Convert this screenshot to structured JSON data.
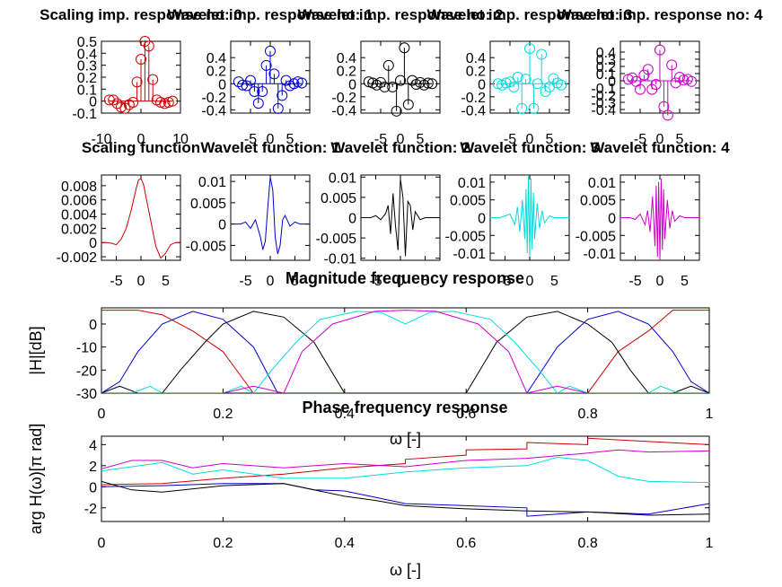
{
  "colors": {
    "scaling": "#cc0000",
    "wavelet1": "#0000cc",
    "wavelet2": "#000000",
    "wavelet3": "#00dddd",
    "wavelet4": "#cc00cc"
  },
  "chart_data": [
    {
      "type": "stem",
      "title": "Scaling imp. response no: 0",
      "ylim": [
        -0.1,
        0.5
      ],
      "yticks": [
        "-0.1",
        "0",
        "0.1",
        "0.2",
        "0.3",
        "0.4",
        "0.5"
      ],
      "xticks": [
        "-10",
        "0",
        "10"
      ],
      "x": [
        -8,
        -7,
        -6,
        -5,
        -4,
        -3,
        -2,
        -1,
        0,
        1,
        2,
        3,
        4,
        5,
        6,
        7,
        8
      ],
      "values": [
        0.01,
        0.01,
        -0.02,
        -0.05,
        -0.06,
        -0.03,
        -0.01,
        0.16,
        0.35,
        0.5,
        0.46,
        0.18,
        0.01,
        -0.01,
        -0.02,
        -0.01,
        0.0
      ]
    },
    {
      "type": "stem",
      "title": "Wavelet imp. response no: 1",
      "ylim": [
        -0.45,
        0.65
      ],
      "yticks": [
        "-0.4",
        "-0.2",
        "0",
        "0.2",
        "0.4"
      ],
      "xticks": [
        "-5",
        "0",
        "5"
      ],
      "x": [
        -8,
        -7,
        -6,
        -5,
        -4,
        -3,
        -2,
        -1,
        0,
        1,
        2,
        3,
        4,
        5,
        6,
        7,
        8
      ],
      "values": [
        0.03,
        -0.02,
        -0.03,
        0.05,
        -0.12,
        -0.3,
        -0.12,
        0.28,
        0.5,
        0.15,
        -0.38,
        -0.18,
        0.05,
        -0.03,
        0.0,
        0.03,
        0.01
      ]
    },
    {
      "type": "stem",
      "title": "Wavelet imp. response no: 2",
      "ylim": [
        -0.45,
        0.65
      ],
      "yticks": [
        "-0.4",
        "-0.2",
        "0",
        "0.2",
        "0.4"
      ],
      "xticks": [
        "-5",
        "0",
        "5"
      ],
      "x": [
        -8,
        -7,
        -6,
        -5,
        -4,
        -3,
        -2,
        -1,
        0,
        1,
        2,
        3,
        4,
        5,
        6,
        7,
        8
      ],
      "values": [
        0.03,
        0.01,
        -0.02,
        0.02,
        -0.05,
        0.28,
        -0.05,
        -0.42,
        0.05,
        0.55,
        -0.32,
        0.05,
        -0.01,
        0.02,
        -0.02,
        0.01,
        0.0
      ]
    },
    {
      "type": "stem",
      "title": "Wavelet imp. response no: 3",
      "ylim": [
        -0.45,
        0.65
      ],
      "yticks": [
        "-0.4",
        "-0.2",
        "0",
        "0.2",
        "0.4"
      ],
      "xticks": [
        "-5",
        "0",
        "5"
      ],
      "x": [
        -8,
        -7,
        -6,
        -5,
        -4,
        -3,
        -2,
        -1,
        0,
        1,
        2,
        3,
        4,
        5,
        6,
        7,
        8
      ],
      "values": [
        0.0,
        -0.02,
        0.01,
        0.03,
        -0.05,
        0.1,
        -0.38,
        0.07,
        0.54,
        -0.38,
        0.0,
        0.45,
        -0.12,
        -0.05,
        0.08,
        0.01,
        -0.02
      ]
    },
    {
      "type": "stem",
      "title": "Wavelet imp. response no: 4",
      "ylim": [
        -0.45,
        0.55
      ],
      "yticks": [
        "-0.4",
        "-0.3",
        "-0.2",
        "-0.1",
        "0",
        "0.1",
        "0.2",
        "0.3",
        "0.4"
      ],
      "xticks": [
        "-5",
        "0",
        "5"
      ],
      "x": [
        -8,
        -7,
        -6,
        -5,
        -4,
        -3,
        -2,
        -1,
        0,
        1,
        2,
        3,
        4,
        5,
        6,
        7,
        8
      ],
      "values": [
        0.02,
        0.04,
        -0.01,
        -0.12,
        0.08,
        0.16,
        -0.12,
        -0.05,
        0.43,
        -0.36,
        -0.48,
        0.22,
        -0.03,
        0.05,
        0.01,
        0.02,
        -0.01
      ]
    },
    {
      "type": "line",
      "title": "Scaling function",
      "ylim": [
        -0.0025,
        0.0095
      ],
      "xlim": [
        -8,
        8
      ],
      "yticks": [
        "-0.002",
        "0",
        "0.002",
        "0.004",
        "0.006",
        "0.008"
      ],
      "xticks": [
        "-5",
        "0",
        "5"
      ],
      "x": [
        -8,
        -7,
        -6,
        -5,
        -4,
        -3,
        -2,
        -1,
        -0.5,
        0,
        0.5,
        1,
        2,
        3,
        4,
        5,
        6,
        7,
        8
      ],
      "values": [
        0.0,
        0.0,
        -0.0001,
        -0.0003,
        0.0005,
        0.002,
        0.0045,
        0.0075,
        0.0088,
        0.009,
        0.0082,
        0.0065,
        0.003,
        -0.0005,
        -0.0022,
        -0.0015,
        -0.0003,
        0.0,
        0.0
      ]
    },
    {
      "type": "line",
      "title": "Wavelet function: 1",
      "ylim": [
        -0.0085,
        0.0115
      ],
      "xlim": [
        -8,
        8
      ],
      "yticks": [
        "-0.005",
        "0",
        "0.005",
        "0.01"
      ],
      "xticks": [
        "-5",
        "0",
        "5"
      ],
      "x": [
        -8,
        -6,
        -5,
        -4,
        -3,
        -2,
        -1.5,
        -1,
        -0.5,
        0,
        0.5,
        1,
        1.5,
        2,
        2.5,
        3,
        4,
        5,
        6,
        8
      ],
      "values": [
        0.0,
        0.0,
        0.0005,
        -0.001,
        0.001,
        -0.003,
        -0.006,
        -0.004,
        0.004,
        0.011,
        0.008,
        -0.003,
        -0.007,
        -0.005,
        0.001,
        0.002,
        -0.0005,
        0.0005,
        0.0,
        0.0
      ]
    },
    {
      "type": "line",
      "title": "Wavelet function: 2",
      "ylim": [
        -0.0105,
        0.0105
      ],
      "xlim": [
        -8,
        8
      ],
      "yticks": [
        "-0.01",
        "-0.005",
        "0",
        "0.005",
        "0.01"
      ],
      "xticks": [
        "-5",
        "0",
        "5"
      ],
      "x": [
        -8,
        -6,
        -5,
        -4,
        -3,
        -2.5,
        -2,
        -1.5,
        -1,
        -0.5,
        0,
        0.5,
        1,
        1.5,
        2,
        2.5,
        3,
        4,
        5,
        6,
        8
      ],
      "values": [
        0.0,
        0.0,
        0.0005,
        -0.0005,
        0.001,
        0.003,
        -0.004,
        0.006,
        -0.002,
        -0.008,
        0.0095,
        0.005,
        -0.0095,
        0.004,
        0.003,
        -0.003,
        0.0015,
        -0.0005,
        0.0,
        0.0,
        0.0
      ]
    },
    {
      "type": "line",
      "title": "Wavelet function: 3",
      "ylim": [
        -0.012,
        0.012
      ],
      "xlim": [
        -8,
        8
      ],
      "yticks": [
        "-0.01",
        "-0.005",
        "0",
        "0.005",
        "0.01"
      ],
      "xticks": [
        "-5",
        "0",
        "5"
      ],
      "x": [
        -8,
        -6,
        -5,
        -4,
        -3,
        -2.5,
        -2,
        -1.5,
        -1,
        -0.75,
        -0.5,
        -0.25,
        0,
        0.25,
        0.5,
        0.75,
        1,
        1.5,
        2,
        2.5,
        3,
        4,
        5,
        6,
        8
      ],
      "values": [
        0.0,
        0.0,
        0.0005,
        0.001,
        -0.002,
        0.003,
        -0.004,
        0.005,
        -0.006,
        0.008,
        -0.01,
        0.012,
        -0.011,
        0.011,
        -0.009,
        0.007,
        -0.006,
        0.004,
        -0.003,
        0.002,
        -0.0015,
        0.0005,
        0.0,
        0.0,
        0.0
      ]
    },
    {
      "type": "line",
      "title": "Wavelet function: 4",
      "ylim": [
        -0.012,
        0.012
      ],
      "xlim": [
        -8,
        8
      ],
      "yticks": [
        "-0.01",
        "-0.005",
        "0",
        "0.005",
        "0.01"
      ],
      "xticks": [
        "-5",
        "0",
        "5"
      ],
      "x": [
        -8,
        -6,
        -5,
        -4,
        -3,
        -2.5,
        -2,
        -1.5,
        -1,
        -0.75,
        -0.5,
        -0.25,
        0,
        0.25,
        0.5,
        0.75,
        1,
        1.5,
        2,
        2.5,
        3,
        4,
        5,
        6,
        8
      ],
      "values": [
        0.0,
        0.0,
        -0.0005,
        0.001,
        -0.002,
        0.002,
        -0.004,
        0.006,
        -0.008,
        0.009,
        -0.011,
        0.01,
        -0.012,
        0.011,
        -0.009,
        0.008,
        -0.006,
        0.005,
        -0.003,
        0.002,
        -0.001,
        0.0005,
        0.0,
        0.0,
        0.0
      ]
    },
    {
      "type": "line",
      "title": "Magnitude frequency response",
      "xlabel": "ω [-]",
      "ylabel": "|H|[dB]",
      "xlim": [
        0,
        1
      ],
      "ylim": [
        -30,
        7
      ],
      "xticks": [
        "0",
        "0.2",
        "0.4",
        "0.6",
        "0.8",
        "1"
      ],
      "yticks": [
        "-30",
        "-20",
        "-10",
        "0"
      ],
      "series": [
        {
          "name": "",
          "color": "scaling",
          "x": [
            0,
            0.06,
            0.1,
            0.15,
            0.2,
            0.25,
            0.8,
            0.85,
            0.9,
            0.94,
            1
          ],
          "values": [
            6,
            6,
            4,
            -3,
            -12,
            -30,
            -30,
            -12,
            -3,
            6,
            6
          ]
        },
        {
          "name": "",
          "color": "wavelet1",
          "x": [
            0,
            0.03,
            0.06,
            0.1,
            0.15,
            0.2,
            0.25,
            0.29,
            0.7,
            0.75,
            0.8,
            0.85,
            0.9,
            0.94,
            0.97,
            1
          ],
          "values": [
            -30,
            -25,
            -12,
            0,
            5.5,
            2,
            -10,
            -30,
            -30,
            -10,
            2,
            5.5,
            0,
            -12,
            -25,
            -30
          ]
        },
        {
          "name": "",
          "color": "wavelet2",
          "x": [
            0,
            0.03,
            0.06,
            0.1,
            0.13,
            0.17,
            0.2,
            0.25,
            0.3,
            0.35,
            0.4,
            0.45,
            0.55,
            0.6,
            0.65,
            0.7,
            0.75,
            0.8,
            0.84,
            0.87,
            0.9,
            0.94,
            0.97,
            1
          ],
          "values": [
            -30,
            -27,
            -30,
            -30,
            -20,
            -8,
            0,
            5.5,
            3,
            -8,
            -30,
            -30,
            -30,
            -30,
            -8,
            3,
            5.5,
            0,
            -8,
            -20,
            -30,
            -30,
            -27,
            -30
          ]
        },
        {
          "name": "",
          "color": "wavelet3",
          "x": [
            0,
            0.05,
            0.08,
            0.1,
            0.2,
            0.23,
            0.25,
            0.28,
            0.32,
            0.36,
            0.42,
            0.46,
            0.5,
            0.54,
            0.58,
            0.64,
            0.68,
            0.72,
            0.75,
            0.77,
            0.8,
            0.9,
            0.92,
            0.95,
            1
          ],
          "values": [
            -30,
            -30,
            -27,
            -30,
            -30,
            -27,
            -30,
            -20,
            -8,
            2,
            5.5,
            5,
            0,
            5,
            5.5,
            2,
            -8,
            -20,
            -30,
            -27,
            -30,
            -30,
            -27,
            -30,
            -30
          ]
        },
        {
          "name": "",
          "color": "wavelet4",
          "x": [
            0,
            0.2,
            0.25,
            0.3,
            0.33,
            0.38,
            0.45,
            0.5,
            0.55,
            0.62,
            0.67,
            0.7,
            0.75,
            0.8,
            1
          ],
          "values": [
            -30,
            -30,
            -27,
            -30,
            -12,
            0,
            5.5,
            6,
            5.5,
            0,
            -12,
            -30,
            -27,
            -30,
            -30
          ]
        }
      ]
    },
    {
      "type": "line",
      "title": "Phase frequency response",
      "xlabel": "ω [-]",
      "ylabel": "arg H(ω)[π rad]",
      "xlim": [
        0,
        1
      ],
      "ylim": [
        -3.3,
        4.8
      ],
      "xticks": [
        "0",
        "0.2",
        "0.4",
        "0.6",
        "0.8",
        "1"
      ],
      "yticks": [
        "-2",
        "0",
        "2",
        "4"
      ],
      "series": [
        {
          "name": "",
          "color": "scaling",
          "x": [
            0,
            0.1,
            0.2,
            0.3,
            0.4,
            0.5,
            0.5,
            0.6,
            0.6,
            0.7,
            0.7,
            0.8,
            0.8,
            0.9,
            1
          ],
          "values": [
            0.2,
            0.3,
            0.8,
            1.2,
            1.8,
            2.2,
            2.6,
            3.0,
            3.5,
            3.6,
            4.2,
            4.0,
            4.6,
            4.3,
            4.0
          ]
        },
        {
          "name": "",
          "color": "wavelet1",
          "x": [
            0,
            0.1,
            0.2,
            0.3,
            0.35,
            0.4,
            0.45,
            0.5,
            0.6,
            0.7,
            0.7,
            0.8,
            0.9,
            1
          ],
          "values": [
            0.0,
            0.1,
            0.3,
            0.3,
            -0.3,
            -0.4,
            -1.0,
            -1.6,
            -1.8,
            -2.0,
            -2.8,
            -2.4,
            -2.6,
            -1.6
          ]
        },
        {
          "name": "",
          "color": "wavelet2",
          "x": [
            0,
            0.05,
            0.1,
            0.2,
            0.3,
            0.4,
            0.45,
            0.5,
            0.6,
            0.7,
            0.8,
            0.9,
            1
          ],
          "values": [
            0.5,
            -0.3,
            -0.5,
            0.1,
            0.3,
            -0.9,
            -1.3,
            -1.8,
            -2.1,
            -2.3,
            -2.4,
            -2.7,
            -2.6
          ]
        },
        {
          "name": "",
          "color": "wavelet3",
          "x": [
            0,
            0.1,
            0.15,
            0.2,
            0.3,
            0.4,
            0.5,
            0.6,
            0.7,
            0.75,
            0.8,
            0.85,
            0.9,
            1
          ],
          "values": [
            1.5,
            2.3,
            1.2,
            1.6,
            0.8,
            0.8,
            1.4,
            1.8,
            2.0,
            2.8,
            2.5,
            1.0,
            0.5,
            0.4
          ]
        },
        {
          "name": "",
          "color": "wavelet4",
          "x": [
            0,
            0.05,
            0.1,
            0.15,
            0.2,
            0.3,
            0.4,
            0.5,
            0.6,
            0.7,
            0.8,
            0.85,
            0.9,
            1
          ],
          "values": [
            1.7,
            2.5,
            2.5,
            1.8,
            2.2,
            1.8,
            2.2,
            1.9,
            2.5,
            2.7,
            3.2,
            3.5,
            3.3,
            3.4
          ]
        }
      ]
    }
  ]
}
